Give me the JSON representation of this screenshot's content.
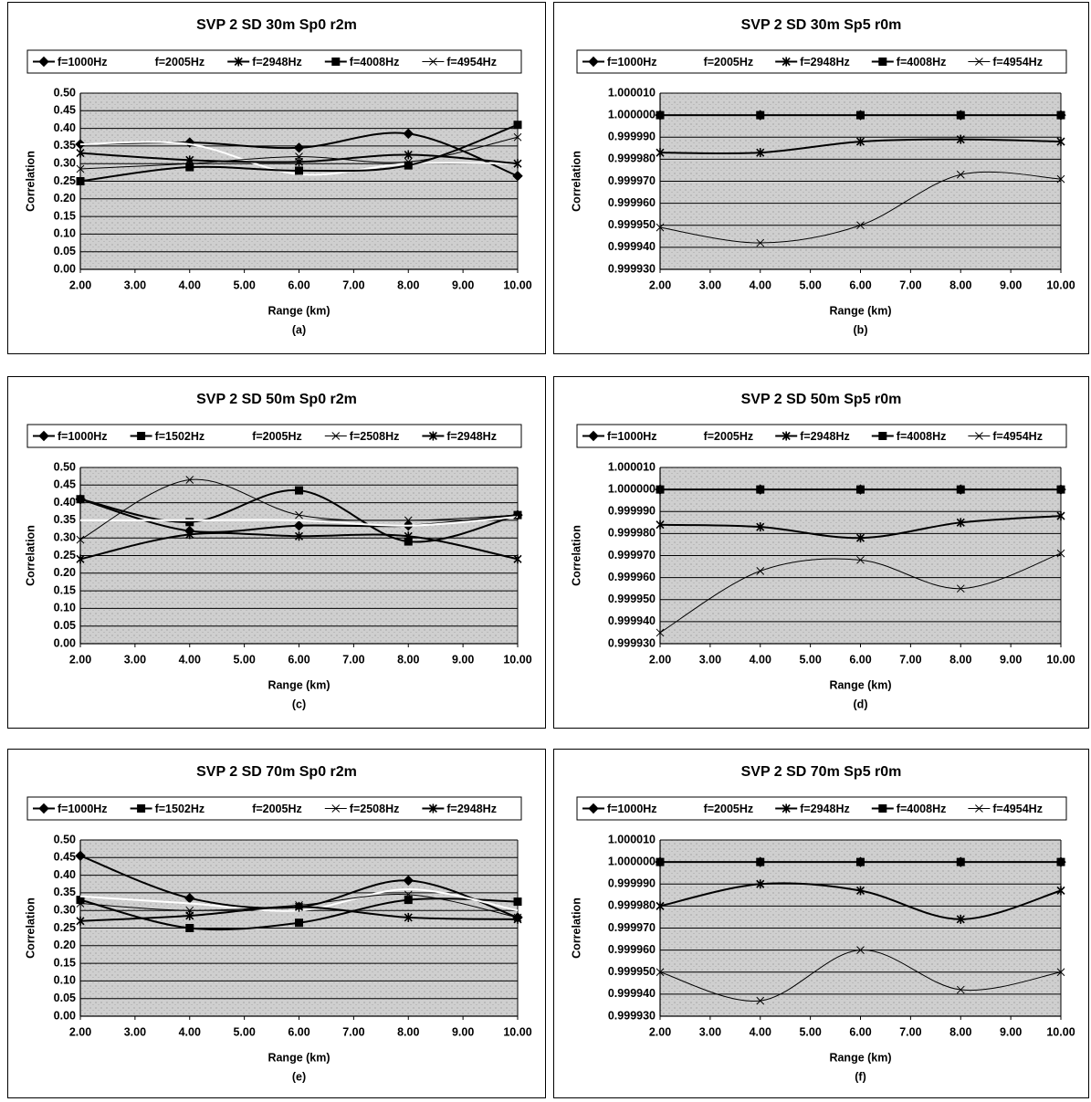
{
  "chart_data": [
    {
      "type": "line",
      "title": "SVP 2 SD 30m Sp0 r2m",
      "xlabel": "Range (km)",
      "ylabel": "Correlation",
      "sublabel": "(a)",
      "x": [
        2,
        4,
        6,
        8,
        10
      ],
      "series": [
        {
          "name": "f=1000Hz",
          "color": "#000000",
          "marker": "diamond",
          "values": [
            0.355,
            0.36,
            0.345,
            0.385,
            0.265
          ]
        },
        {
          "name": "f=2005Hz",
          "color": "#ffffff",
          "marker": "none",
          "values": [
            0.355,
            0.355,
            0.27,
            0.3,
            0.3
          ]
        },
        {
          "name": "f=2948Hz",
          "color": "#000000",
          "marker": "asterisk",
          "values": [
            0.33,
            0.31,
            0.305,
            0.325,
            0.3
          ]
        },
        {
          "name": "f=4008Hz",
          "color": "#000000",
          "marker": "square",
          "values": [
            0.25,
            0.29,
            0.28,
            0.295,
            0.41
          ]
        },
        {
          "name": "f=4954Hz",
          "color": "#000000",
          "marker": "x",
          "values": [
            0.285,
            0.3,
            0.32,
            0.305,
            0.375
          ]
        }
      ],
      "xlim": [
        2,
        10
      ],
      "xticks": [
        {
          "value": 2,
          "label": "2.00"
        },
        {
          "value": 3,
          "label": "3.00"
        },
        {
          "value": 4,
          "label": "4.00"
        },
        {
          "value": 5,
          "label": "5.00"
        },
        {
          "value": 6,
          "label": "6.00"
        },
        {
          "value": 7,
          "label": "7.00"
        },
        {
          "value": 8,
          "label": "8.00"
        },
        {
          "value": 9,
          "label": "9.00"
        },
        {
          "value": 10,
          "label": "10.00"
        }
      ],
      "ylim": [
        0,
        0.5
      ],
      "yticks": [
        {
          "value": 0,
          "label": "0.00"
        },
        {
          "value": 0.05,
          "label": "0.05"
        },
        {
          "value": 0.1,
          "label": "0.10"
        },
        {
          "value": 0.15,
          "label": "0.15"
        },
        {
          "value": 0.2,
          "label": "0.20"
        },
        {
          "value": 0.25,
          "label": "0.25"
        },
        {
          "value": 0.3,
          "label": "0.30"
        },
        {
          "value": 0.35,
          "label": "0.35"
        },
        {
          "value": 0.4,
          "label": "0.40"
        },
        {
          "value": 0.45,
          "label": "0.45"
        },
        {
          "value": 0.5,
          "label": "0.50"
        }
      ],
      "grid": true
    },
    {
      "type": "line",
      "title": "SVP 2 SD 30m Sp5 r0m",
      "xlabel": "Range (km)",
      "ylabel": "Correlation",
      "sublabel": "(b)",
      "x": [
        2,
        4,
        6,
        8,
        10
      ],
      "series": [
        {
          "name": "f=1000Hz",
          "color": "#000000",
          "marker": "diamond",
          "values": [
            1.0,
            1.0,
            1.0,
            1.0,
            1.0
          ]
        },
        {
          "name": "f=2005Hz",
          "color": "#ffffff",
          "marker": "none",
          "values": [
            1.0,
            1.0,
            1.0,
            1.0,
            1.0
          ]
        },
        {
          "name": "f=2948Hz",
          "color": "#000000",
          "marker": "asterisk",
          "values": [
            0.999983,
            0.999983,
            0.999988,
            0.999989,
            0.999988
          ]
        },
        {
          "name": "f=4008Hz",
          "color": "#000000",
          "marker": "square",
          "values": [
            1.0,
            1.0,
            1.0,
            1.0,
            1.0
          ]
        },
        {
          "name": "f=4954Hz",
          "color": "#000000",
          "marker": "x",
          "values": [
            0.999949,
            0.999942,
            0.99995,
            0.999973,
            0.999971
          ]
        }
      ],
      "xlim": [
        2,
        10
      ],
      "xticks": [
        {
          "value": 2,
          "label": "2.00"
        },
        {
          "value": 3,
          "label": "3.00"
        },
        {
          "value": 4,
          "label": "4.00"
        },
        {
          "value": 5,
          "label": "5.00"
        },
        {
          "value": 6,
          "label": "6.00"
        },
        {
          "value": 7,
          "label": "7.00"
        },
        {
          "value": 8,
          "label": "8.00"
        },
        {
          "value": 9,
          "label": "9.00"
        },
        {
          "value": 10,
          "label": "10.00"
        }
      ],
      "ylim": [
        0.99993,
        1.00001
      ],
      "yticks": [
        {
          "value": 0.99993,
          "label": "0.999930"
        },
        {
          "value": 0.99994,
          "label": "0.999940"
        },
        {
          "value": 0.99995,
          "label": "0.999950"
        },
        {
          "value": 0.99996,
          "label": "0.999960"
        },
        {
          "value": 0.99997,
          "label": "0.999970"
        },
        {
          "value": 0.99998,
          "label": "0.999980"
        },
        {
          "value": 0.99999,
          "label": "0.999990"
        },
        {
          "value": 1.0,
          "label": "1.000000"
        },
        {
          "value": 1.00001,
          "label": "1.000010"
        }
      ],
      "grid": true
    },
    {
      "type": "line",
      "title": "SVP 2 SD 50m Sp0 r2m",
      "xlabel": "Range (km)",
      "ylabel": "Correlation",
      "sublabel": "(c)",
      "x": [
        2,
        4,
        6,
        8,
        10
      ],
      "series": [
        {
          "name": "f=1000Hz",
          "color": "#000000",
          "marker": "diamond",
          "values": [
            0.41,
            0.32,
            0.335,
            0.335,
            0.365
          ]
        },
        {
          "name": "f=1502Hz",
          "color": "#000000",
          "marker": "square",
          "values": [
            0.41,
            0.345,
            0.435,
            0.29,
            0.365
          ]
        },
        {
          "name": "f=2005Hz",
          "color": "#ffffff",
          "marker": "none",
          "values": [
            0.35,
            0.35,
            0.35,
            0.335,
            0.36
          ]
        },
        {
          "name": "f=2508Hz",
          "color": "#000000",
          "marker": "x",
          "values": [
            0.295,
            0.465,
            0.365,
            0.35,
            0.365
          ]
        },
        {
          "name": "f=2948Hz",
          "color": "#000000",
          "marker": "asterisk",
          "values": [
            0.24,
            0.31,
            0.305,
            0.305,
            0.24
          ]
        }
      ],
      "xlim": [
        2,
        10
      ],
      "xticks": [
        {
          "value": 2,
          "label": "2.00"
        },
        {
          "value": 3,
          "label": "3.00"
        },
        {
          "value": 4,
          "label": "4.00"
        },
        {
          "value": 5,
          "label": "5.00"
        },
        {
          "value": 6,
          "label": "6.00"
        },
        {
          "value": 7,
          "label": "7.00"
        },
        {
          "value": 8,
          "label": "8.00"
        },
        {
          "value": 9,
          "label": "9.00"
        },
        {
          "value": 10,
          "label": "10.00"
        }
      ],
      "ylim": [
        0,
        0.5
      ],
      "yticks": [
        {
          "value": 0,
          "label": "0.00"
        },
        {
          "value": 0.05,
          "label": "0.05"
        },
        {
          "value": 0.1,
          "label": "0.10"
        },
        {
          "value": 0.15,
          "label": "0.15"
        },
        {
          "value": 0.2,
          "label": "0.20"
        },
        {
          "value": 0.25,
          "label": "0.25"
        },
        {
          "value": 0.3,
          "label": "0.30"
        },
        {
          "value": 0.35,
          "label": "0.35"
        },
        {
          "value": 0.4,
          "label": "0.40"
        },
        {
          "value": 0.45,
          "label": "0.45"
        },
        {
          "value": 0.5,
          "label": "0.50"
        }
      ],
      "grid": true
    },
    {
      "type": "line",
      "title": "SVP 2 SD 50m Sp5 r0m",
      "xlabel": "Range (km)",
      "ylabel": "Correlation",
      "sublabel": "(d)",
      "x": [
        2,
        4,
        6,
        8,
        10
      ],
      "series": [
        {
          "name": "f=1000Hz",
          "color": "#000000",
          "marker": "diamond",
          "values": [
            1.0,
            1.0,
            1.0,
            1.0,
            1.0
          ]
        },
        {
          "name": "f=2005Hz",
          "color": "#ffffff",
          "marker": "none",
          "values": [
            1.0,
            1.0,
            1.0,
            1.0,
            1.0
          ]
        },
        {
          "name": "f=2948Hz",
          "color": "#000000",
          "marker": "asterisk",
          "values": [
            0.999984,
            0.999983,
            0.999978,
            0.999985,
            0.999988
          ]
        },
        {
          "name": "f=4008Hz",
          "color": "#000000",
          "marker": "square",
          "values": [
            1.0,
            1.0,
            1.0,
            1.0,
            1.0
          ]
        },
        {
          "name": "f=4954Hz",
          "color": "#000000",
          "marker": "x",
          "values": [
            0.999935,
            0.999963,
            0.999968,
            0.999955,
            0.999971
          ]
        }
      ],
      "xlim": [
        2,
        10
      ],
      "xticks": [
        {
          "value": 2,
          "label": "2.00"
        },
        {
          "value": 3,
          "label": "3.00"
        },
        {
          "value": 4,
          "label": "4.00"
        },
        {
          "value": 5,
          "label": "5.00"
        },
        {
          "value": 6,
          "label": "6.00"
        },
        {
          "value": 7,
          "label": "7.00"
        },
        {
          "value": 8,
          "label": "8.00"
        },
        {
          "value": 9,
          "label": "9.00"
        },
        {
          "value": 10,
          "label": "10.00"
        }
      ],
      "ylim": [
        0.99993,
        1.00001
      ],
      "yticks": [
        {
          "value": 0.99993,
          "label": "0.999930"
        },
        {
          "value": 0.99994,
          "label": "0.999940"
        },
        {
          "value": 0.99995,
          "label": "0.999950"
        },
        {
          "value": 0.99996,
          "label": "0.999960"
        },
        {
          "value": 0.99997,
          "label": "0.999970"
        },
        {
          "value": 0.99998,
          "label": "0.999980"
        },
        {
          "value": 0.99999,
          "label": "0.999990"
        },
        {
          "value": 1.0,
          "label": "1.000000"
        },
        {
          "value": 1.00001,
          "label": "1.000010"
        }
      ],
      "grid": true
    },
    {
      "type": "line",
      "title": "SVP 2 SD 70m Sp0 r2m",
      "xlabel": "Range (km)",
      "ylabel": "Correlation",
      "sublabel": "(e)",
      "x": [
        2,
        4,
        6,
        8,
        10
      ],
      "series": [
        {
          "name": "f=1000Hz",
          "color": "#000000",
          "marker": "diamond",
          "values": [
            0.455,
            0.335,
            0.31,
            0.385,
            0.28
          ]
        },
        {
          "name": "f=1502Hz",
          "color": "#000000",
          "marker": "square",
          "values": [
            0.33,
            0.25,
            0.265,
            0.33,
            0.325
          ]
        },
        {
          "name": "f=2005Hz",
          "color": "#ffffff",
          "marker": "none",
          "values": [
            0.34,
            0.32,
            0.3,
            0.36,
            0.3
          ]
        },
        {
          "name": "f=2508Hz",
          "color": "#000000",
          "marker": "x",
          "values": [
            0.32,
            0.3,
            0.315,
            0.345,
            0.28
          ]
        },
        {
          "name": "f=2948Hz",
          "color": "#000000",
          "marker": "asterisk",
          "values": [
            0.27,
            0.285,
            0.31,
            0.28,
            0.275
          ]
        }
      ],
      "xlim": [
        2,
        10
      ],
      "xticks": [
        {
          "value": 2,
          "label": "2.00"
        },
        {
          "value": 3,
          "label": "3.00"
        },
        {
          "value": 4,
          "label": "4.00"
        },
        {
          "value": 5,
          "label": "5.00"
        },
        {
          "value": 6,
          "label": "6.00"
        },
        {
          "value": 7,
          "label": "7.00"
        },
        {
          "value": 8,
          "label": "8.00"
        },
        {
          "value": 9,
          "label": "9.00"
        },
        {
          "value": 10,
          "label": "10.00"
        }
      ],
      "ylim": [
        0,
        0.5
      ],
      "yticks": [
        {
          "value": 0,
          "label": "0.00"
        },
        {
          "value": 0.05,
          "label": "0.05"
        },
        {
          "value": 0.1,
          "label": "0.10"
        },
        {
          "value": 0.15,
          "label": "0.15"
        },
        {
          "value": 0.2,
          "label": "0.20"
        },
        {
          "value": 0.25,
          "label": "0.25"
        },
        {
          "value": 0.3,
          "label": "0.30"
        },
        {
          "value": 0.35,
          "label": "0.35"
        },
        {
          "value": 0.4,
          "label": "0.40"
        },
        {
          "value": 0.45,
          "label": "0.45"
        },
        {
          "value": 0.5,
          "label": "0.50"
        }
      ],
      "grid": true
    },
    {
      "type": "line",
      "title": "SVP 2 SD 70m Sp5 r0m",
      "xlabel": "Range (km)",
      "ylabel": "Correlation",
      "sublabel": "(f)",
      "x": [
        2,
        4,
        6,
        8,
        10
      ],
      "series": [
        {
          "name": "f=1000Hz",
          "color": "#000000",
          "marker": "diamond",
          "values": [
            1.0,
            1.0,
            1.0,
            1.0,
            1.0
          ]
        },
        {
          "name": "f=2005Hz",
          "color": "#ffffff",
          "marker": "none",
          "values": [
            1.0,
            1.0,
            1.0,
            1.0,
            1.0
          ]
        },
        {
          "name": "f=2948Hz",
          "color": "#000000",
          "marker": "asterisk",
          "values": [
            0.99998,
            0.99999,
            0.999987,
            0.999974,
            0.999987
          ]
        },
        {
          "name": "f=4008Hz",
          "color": "#000000",
          "marker": "square",
          "values": [
            1.0,
            1.0,
            1.0,
            1.0,
            1.0
          ]
        },
        {
          "name": "f=4954Hz",
          "color": "#000000",
          "marker": "x",
          "values": [
            0.99995,
            0.999937,
            0.99996,
            0.999942,
            0.99995
          ]
        }
      ],
      "xlim": [
        2,
        10
      ],
      "xticks": [
        {
          "value": 2,
          "label": "2.00"
        },
        {
          "value": 3,
          "label": "3.00"
        },
        {
          "value": 4,
          "label": "4.00"
        },
        {
          "value": 5,
          "label": "5.00"
        },
        {
          "value": 6,
          "label": "6.00"
        },
        {
          "value": 7,
          "label": "7.00"
        },
        {
          "value": 8,
          "label": "8.00"
        },
        {
          "value": 9,
          "label": "9.00"
        },
        {
          "value": 10,
          "label": "10.00"
        }
      ],
      "ylim": [
        0.99993,
        1.00001
      ],
      "yticks": [
        {
          "value": 0.99993,
          "label": "0.999930"
        },
        {
          "value": 0.99994,
          "label": "0.999940"
        },
        {
          "value": 0.99995,
          "label": "0.999950"
        },
        {
          "value": 0.99996,
          "label": "0.999960"
        },
        {
          "value": 0.99997,
          "label": "0.999970"
        },
        {
          "value": 0.99998,
          "label": "0.999980"
        },
        {
          "value": 0.99999,
          "label": "0.999990"
        },
        {
          "value": 1.0,
          "label": "1.000000"
        },
        {
          "value": 1.00001,
          "label": "1.000010"
        }
      ],
      "grid": true
    }
  ]
}
